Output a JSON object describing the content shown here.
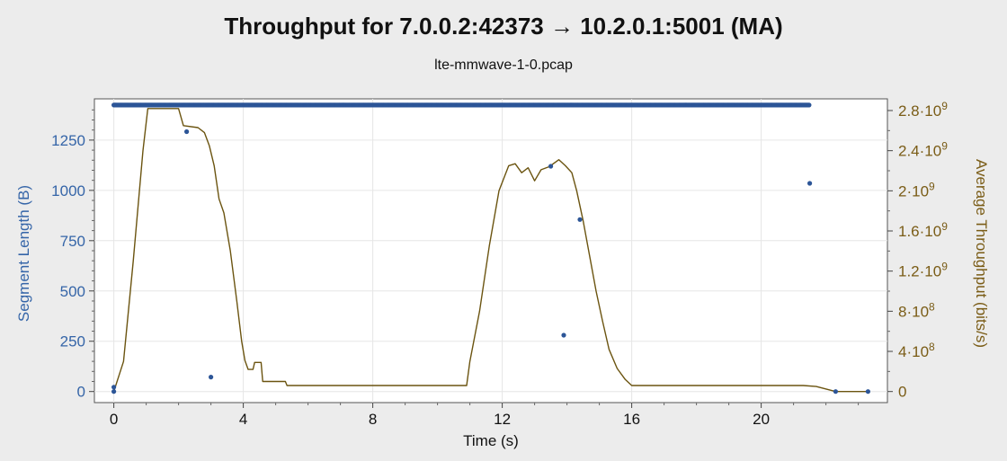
{
  "chart_data": {
    "type": "scatter+line",
    "title": "Throughput for 7.0.0.2:42373 → 10.2.0.1:5001 (MA)",
    "subtitle": "lte-mmwave-1-0.pcap",
    "xlabel": "Time (s)",
    "ylabel_left": "Segment Length (B)",
    "ylabel_right": "Average Throughput (bits/s)",
    "xlim": [
      -0.6,
      23.9
    ],
    "ylim_left": [
      -55,
      1455
    ],
    "ylim_right": [
      0,
      2800000000
    ],
    "x_ticks": [
      0,
      4,
      8,
      12,
      16,
      20
    ],
    "y_ticks_left": [
      0,
      250,
      500,
      750,
      1000,
      1250
    ],
    "y_ticks_right": [
      {
        "value": 0,
        "mant": "0",
        "exp": ""
      },
      {
        "value": 400000000,
        "mant": "4·10",
        "exp": "8"
      },
      {
        "value": 800000000,
        "mant": "8·10",
        "exp": "8"
      },
      {
        "value": 1200000000,
        "mant": "1.2·10",
        "exp": "9"
      },
      {
        "value": 1600000000,
        "mant": "1.6·10",
        "exp": "9"
      },
      {
        "value": 2000000000,
        "mant": "2·10",
        "exp": "9"
      },
      {
        "value": 2400000000,
        "mant": "2.4·10",
        "exp": "9"
      },
      {
        "value": 2800000000,
        "mant": "2.8·10",
        "exp": "9"
      }
    ],
    "grid": true,
    "colors": {
      "segments": "#2c5597",
      "throughput": "#6b5410",
      "left_axis": "#3565a8",
      "right_axis": "#7a5c16"
    },
    "series": [
      {
        "kind": "segment-length-dots",
        "dense_band": {
          "y": 1424,
          "x_start": 0.0,
          "x_end": 21.5
        },
        "points": [
          {
            "x": 0.0,
            "y": 0
          },
          {
            "x": 0.0,
            "y": 22
          },
          {
            "x": 2.25,
            "y": 1292
          },
          {
            "x": 3.0,
            "y": 72
          },
          {
            "x": 13.5,
            "y": 1120
          },
          {
            "x": 13.9,
            "y": 280
          },
          {
            "x": 14.4,
            "y": 855
          },
          {
            "x": 21.5,
            "y": 1035
          },
          {
            "x": 22.3,
            "y": 0
          },
          {
            "x": 23.3,
            "y": 0
          }
        ]
      },
      {
        "kind": "average-throughput-line",
        "points": [
          {
            "x": 0.0,
            "y": 0
          },
          {
            "x": 0.3,
            "y": 300000000
          },
          {
            "x": 0.6,
            "y": 1300000000
          },
          {
            "x": 0.9,
            "y": 2400000000
          },
          {
            "x": 1.05,
            "y": 2820000000
          },
          {
            "x": 1.5,
            "y": 2820000000
          },
          {
            "x": 2.0,
            "y": 2820000000
          },
          {
            "x": 2.15,
            "y": 2650000000
          },
          {
            "x": 2.6,
            "y": 2630000000
          },
          {
            "x": 2.8,
            "y": 2580000000
          },
          {
            "x": 2.95,
            "y": 2450000000
          },
          {
            "x": 3.1,
            "y": 2250000000
          },
          {
            "x": 3.25,
            "y": 1920000000
          },
          {
            "x": 3.4,
            "y": 1780000000
          },
          {
            "x": 3.6,
            "y": 1400000000
          },
          {
            "x": 3.8,
            "y": 900000000
          },
          {
            "x": 3.95,
            "y": 500000000
          },
          {
            "x": 4.05,
            "y": 310000000
          },
          {
            "x": 4.15,
            "y": 220000000
          },
          {
            "x": 4.3,
            "y": 220000000
          },
          {
            "x": 4.35,
            "y": 290000000
          },
          {
            "x": 4.55,
            "y": 290000000
          },
          {
            "x": 4.6,
            "y": 100000000
          },
          {
            "x": 5.3,
            "y": 100000000
          },
          {
            "x": 5.35,
            "y": 60000000
          },
          {
            "x": 10.9,
            "y": 60000000
          },
          {
            "x": 11.0,
            "y": 300000000
          },
          {
            "x": 11.3,
            "y": 800000000
          },
          {
            "x": 11.6,
            "y": 1450000000
          },
          {
            "x": 11.9,
            "y": 2000000000
          },
          {
            "x": 12.2,
            "y": 2250000000
          },
          {
            "x": 12.4,
            "y": 2270000000
          },
          {
            "x": 12.6,
            "y": 2180000000
          },
          {
            "x": 12.8,
            "y": 2230000000
          },
          {
            "x": 13.0,
            "y": 2100000000
          },
          {
            "x": 13.2,
            "y": 2210000000
          },
          {
            "x": 13.45,
            "y": 2240000000
          },
          {
            "x": 13.75,
            "y": 2310000000
          },
          {
            "x": 13.95,
            "y": 2250000000
          },
          {
            "x": 14.15,
            "y": 2180000000
          },
          {
            "x": 14.3,
            "y": 2000000000
          },
          {
            "x": 14.5,
            "y": 1700000000
          },
          {
            "x": 14.7,
            "y": 1350000000
          },
          {
            "x": 14.9,
            "y": 1000000000
          },
          {
            "x": 15.1,
            "y": 700000000
          },
          {
            "x": 15.3,
            "y": 420000000
          },
          {
            "x": 15.55,
            "y": 230000000
          },
          {
            "x": 15.8,
            "y": 120000000
          },
          {
            "x": 16.0,
            "y": 60000000
          },
          {
            "x": 21.3,
            "y": 60000000
          },
          {
            "x": 21.7,
            "y": 50000000
          },
          {
            "x": 22.3,
            "y": 0
          },
          {
            "x": 23.3,
            "y": 0
          }
        ]
      }
    ]
  }
}
